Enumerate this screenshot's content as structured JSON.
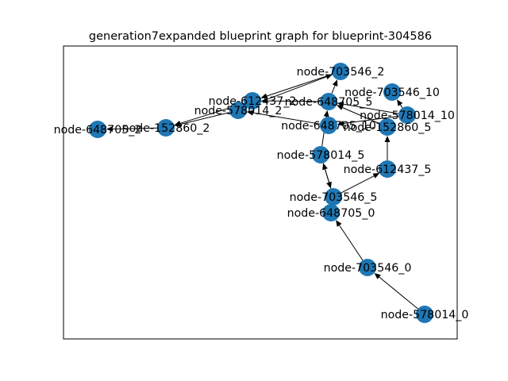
{
  "title": "generation7expanded blueprint graph for blueprint-304586",
  "colors": {
    "node": "#1f77b4",
    "edge": "#000000",
    "frame": "#000000"
  },
  "nodes": [
    {
      "id": "node-703546_2",
      "label": "node-703546_2"
    },
    {
      "id": "node-703546_10",
      "label": "node-703546_10"
    },
    {
      "id": "node-612437_2",
      "label": "node-612437_2"
    },
    {
      "id": "node-578014_2",
      "label": "node-578014_2"
    },
    {
      "id": "node-648705_5",
      "label": "node-648705_5"
    },
    {
      "id": "node-578014_10",
      "label": "node-578014_10"
    },
    {
      "id": "node-648705_2",
      "label": "node-648705_2"
    },
    {
      "id": "node-152860_2",
      "label": "node-152860_2"
    },
    {
      "id": "node-648705_10",
      "label": "node-648705_10"
    },
    {
      "id": "node-152860_5",
      "label": "node-152860_5"
    },
    {
      "id": "node-578014_5",
      "label": "node-578014_5"
    },
    {
      "id": "node-612437_5",
      "label": "node-612437_5"
    },
    {
      "id": "node-703546_5",
      "label": "node-703546_5"
    },
    {
      "id": "node-648705_0",
      "label": "node-648705_0"
    },
    {
      "id": "node-703546_0",
      "label": "node-703546_0"
    },
    {
      "id": "node-578014_0",
      "label": "node-578014_0"
    }
  ],
  "edges": [
    {
      "from": "node-578014_0",
      "to": "node-703546_0"
    },
    {
      "from": "node-703546_0",
      "to": "node-648705_0"
    },
    {
      "from": "node-703546_5",
      "to": "node-578014_5"
    },
    {
      "from": "node-578014_5",
      "to": "node-703546_5"
    },
    {
      "from": "node-703546_5",
      "to": "node-612437_5"
    },
    {
      "from": "node-578014_5",
      "to": "node-648705_5"
    },
    {
      "from": "node-612437_5",
      "to": "node-152860_5"
    },
    {
      "from": "node-152860_5",
      "to": "node-648705_5"
    },
    {
      "from": "node-648705_5",
      "to": "node-703546_2"
    },
    {
      "from": "node-648705_5",
      "to": "node-612437_2"
    },
    {
      "from": "node-578014_10",
      "to": "node-703546_10"
    },
    {
      "from": "node-578014_10",
      "to": "node-648705_10"
    },
    {
      "from": "node-578014_10",
      "to": "node-648705_5"
    },
    {
      "from": "node-648705_10",
      "to": "node-578014_2"
    },
    {
      "from": "node-703546_2",
      "to": "node-612437_2"
    },
    {
      "from": "node-578014_2",
      "to": "node-703546_2"
    },
    {
      "from": "node-578014_2",
      "to": "node-612437_2"
    },
    {
      "from": "node-578014_2",
      "to": "node-152860_2"
    },
    {
      "from": "node-612437_2",
      "to": "node-152860_2"
    },
    {
      "from": "node-152860_2",
      "to": "node-648705_2"
    }
  ]
}
